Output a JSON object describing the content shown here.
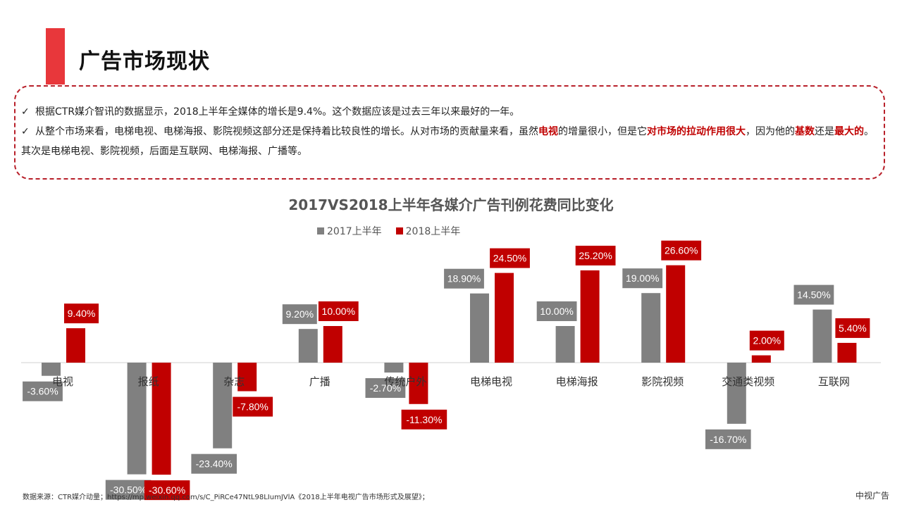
{
  "header": {
    "title": "广告市场现状"
  },
  "notes": {
    "bullet1": "根据CTR媒介智讯的数据显示，2018上半年全媒体的增长是9.4%。这个数据应该是过去三年以来最好的一年。",
    "bullet2": {
      "p1": "从整个市场来看，电梯电视、电梯海报、影院视频这部分还是保持着比较良性的增长。从对市场的贡献量来看，虽然",
      "h1": "电视",
      "p2": "的增量很小，但是它",
      "h2": "对市场的拉动作用很大",
      "p3": "，因为他的",
      "h3": "基数",
      "p4": "还是",
      "h4": "最大的",
      "p5": "。其次是电梯电视、影院视频，后面是互联网、电梯海报、广播等。"
    },
    "check": "✓"
  },
  "chart_data": {
    "type": "bar",
    "title": "2017VS2018上半年各媒介广告刊例花费同比变化",
    "categories": [
      "电视",
      "报纸",
      "杂志",
      "广播",
      "传统户外",
      "电梯电视",
      "电梯海报",
      "影院视频",
      "交通类视频",
      "互联网"
    ],
    "series": [
      {
        "name": "2017上半年",
        "color": "#808080",
        "values": [
          -3.6,
          -30.5,
          -23.4,
          9.2,
          -2.7,
          18.9,
          10.0,
          19.0,
          -16.7,
          14.5
        ]
      },
      {
        "name": "2018上半年",
        "color": "#c00000",
        "values": [
          9.4,
          -30.6,
          -7.8,
          10.0,
          -11.3,
          24.5,
          25.2,
          26.6,
          2.0,
          5.4
        ]
      }
    ],
    "labels": {
      "2017上半年": [
        "-3.60%",
        "-30.50%",
        "-23.40%",
        "9.20%",
        "-2.70%",
        "18.90%",
        "10.00%",
        "19.00%",
        "-16.70%",
        "14.50%"
      ],
      "2018上半年": [
        "9.40%",
        "-30.60%",
        "-7.80%",
        "10.00%",
        "-11.30%",
        "24.50%",
        "25.20%",
        "26.60%",
        "2.00%",
        "5.40%"
      ]
    },
    "legend_position": "top-center",
    "unit": "%"
  },
  "footer": {
    "source": "数据来源：CTR媒介动量；https://mp.weixin.qq.com/s/C_PiRCe47NtL98LIumJVlA《2018上半年电视广告市场形式及展望》；",
    "brand": "中视广告"
  }
}
